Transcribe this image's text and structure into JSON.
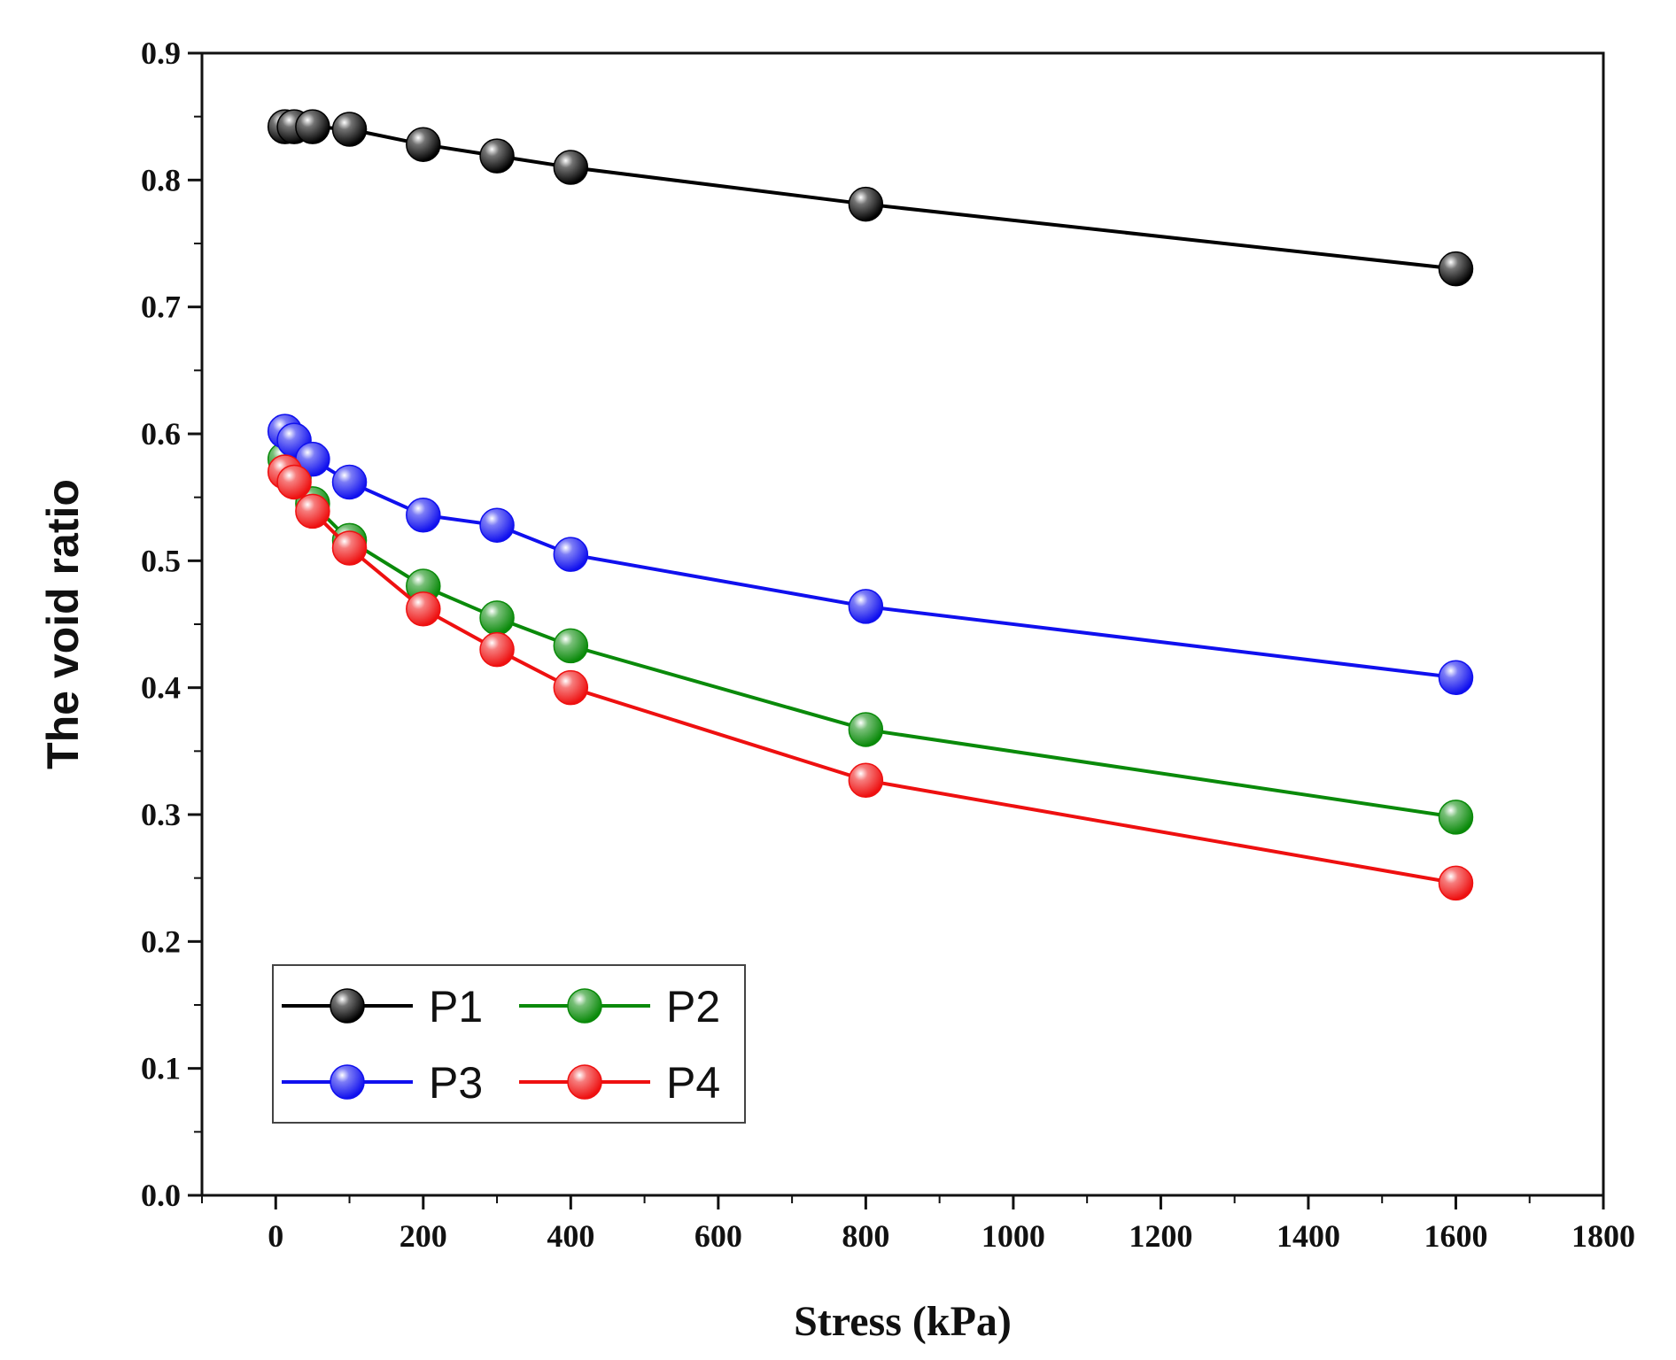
{
  "chart_data": {
    "type": "line",
    "title": "",
    "xlabel": "Stress (kPa)",
    "ylabel": "The void ratio",
    "xlim": [
      -100,
      1800
    ],
    "ylim": [
      0.0,
      0.9
    ],
    "x_ticks": [
      0,
      200,
      400,
      600,
      800,
      1000,
      1200,
      1400,
      1600,
      1800
    ],
    "y_ticks": [
      "0.0",
      "0.1",
      "0.2",
      "0.3",
      "0.4",
      "0.5",
      "0.6",
      "0.7",
      "0.8",
      "0.9"
    ],
    "grid": false,
    "legend_position": "bottom-left",
    "x": [
      12.5,
      25,
      50,
      100,
      200,
      300,
      400,
      800,
      1600
    ],
    "series": [
      {
        "name": "P1",
        "color": "#000000",
        "values": [
          0.842,
          0.842,
          0.842,
          0.84,
          0.828,
          0.819,
          0.81,
          0.781,
          0.73
        ]
      },
      {
        "name": "P2",
        "color": "#0a8a0a",
        "values": [
          0.58,
          0.565,
          0.545,
          0.516,
          0.48,
          0.455,
          0.433,
          0.367,
          0.298
        ]
      },
      {
        "name": "P3",
        "color": "#1010ee",
        "values": [
          0.602,
          0.595,
          0.58,
          0.562,
          0.536,
          0.528,
          0.505,
          0.464,
          0.408
        ]
      },
      {
        "name": "P4",
        "color": "#ee1010",
        "values": [
          0.57,
          0.562,
          0.539,
          0.51,
          0.462,
          0.43,
          0.4,
          0.327,
          0.246
        ]
      }
    ]
  }
}
